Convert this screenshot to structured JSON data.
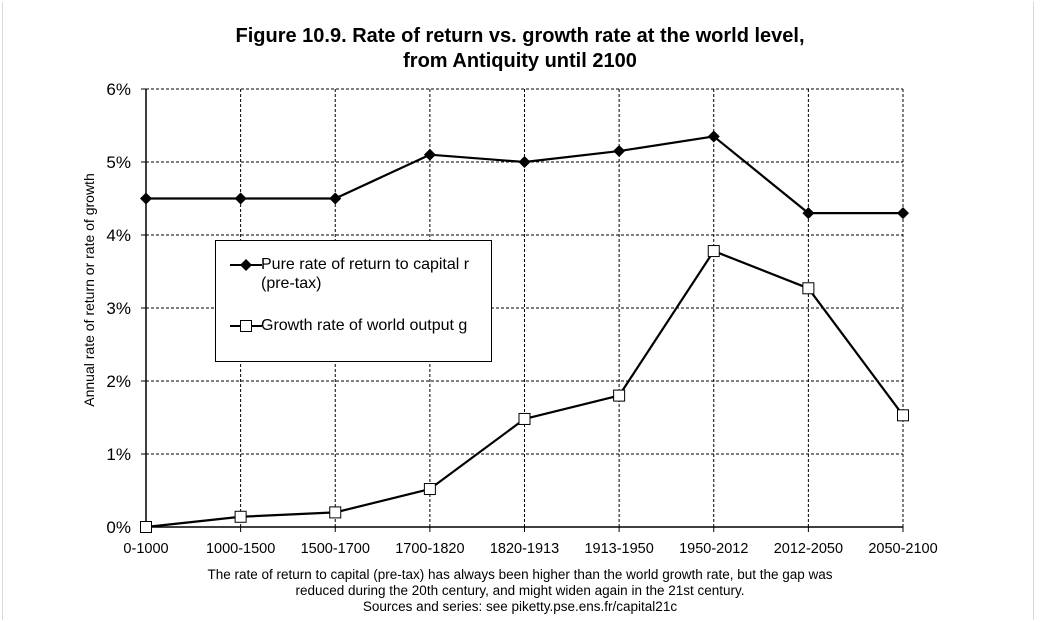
{
  "title_line1": "Figure 10.9. Rate of return vs. growth rate at the world level,",
  "title_line2": "from Antiquity until 2100",
  "caption_line1": "The rate of return to capital (pre-tax) has always been higher than the world growth rate, but the gap was",
  "caption_line2": "reduced during the 20th century, and might widen again in the 21st century.",
  "caption_line3": "Sources and series: see piketty.pse.ens.fr/capital21c",
  "legend": {
    "r_line1": "Pure rate of return to capital r",
    "r_line2": "(pre-tax)",
    "g_label": "Growth rate of world output g"
  },
  "chart_data": {
    "type": "line",
    "categories": [
      "0-1000",
      "1000-1500",
      "1500-1700",
      "1700-1820",
      "1820-1913",
      "1913-1950",
      "1950-2012",
      "2012-2050",
      "2050-2100"
    ],
    "series": [
      {
        "name": "Pure rate of return to capital r (pre-tax)",
        "marker": "filled-diamond",
        "values": [
          4.5,
          4.5,
          4.5,
          5.1,
          5.0,
          5.15,
          5.35,
          4.3,
          4.3
        ]
      },
      {
        "name": "Growth rate of world output g",
        "marker": "open-square",
        "values": [
          0.0,
          0.14,
          0.2,
          0.52,
          1.48,
          1.8,
          3.78,
          3.27,
          1.53
        ]
      }
    ],
    "ylabel": "Annual rate of return or rate of growth",
    "ylim": [
      0,
      6
    ],
    "yticks": [
      "0%",
      "1%",
      "2%",
      "3%",
      "4%",
      "5%",
      "6%"
    ],
    "grid": "dashed",
    "legend_position": "center-left",
    "colors": {
      "line": "#000000",
      "grid": "#000000",
      "marker_fill_g": "#ffffff"
    }
  }
}
